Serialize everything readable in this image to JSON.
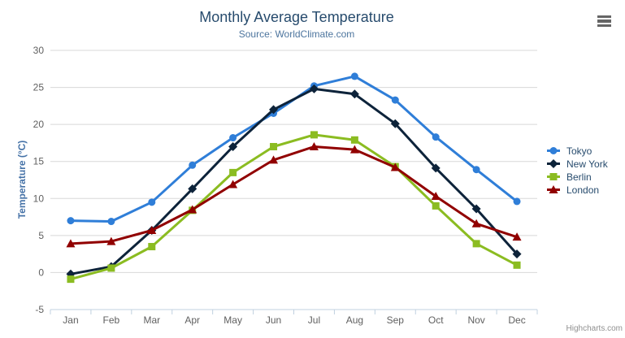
{
  "credits": {
    "label": "Highcharts.com"
  },
  "icons": {
    "export_menu": "hamburger-menu-icon"
  },
  "colors": {
    "background": "#ffffff",
    "title": "#274b6d",
    "subtitle": "#4d759e",
    "yaxis_title": "#4572a7",
    "axis_labels": "#606060",
    "gridline": "#d8d8d8",
    "axis_line": "#c0d0e0",
    "legend_text": "#274b6d",
    "credits_text": "#909090",
    "export_icon": "#666666"
  },
  "chart_data": {
    "type": "line",
    "title": "Monthly Average Temperature",
    "subtitle": "Source: WorldClimate.com",
    "xlabel": "",
    "ylabel": "Temperature (°C)",
    "ylim": [
      -5,
      30
    ],
    "ytick_step": 5,
    "yticks": [
      30,
      25,
      20,
      15,
      10,
      5,
      0,
      -5
    ],
    "grid": true,
    "legend_position": "right",
    "categories": [
      "Jan",
      "Feb",
      "Mar",
      "Apr",
      "May",
      "Jun",
      "Jul",
      "Aug",
      "Sep",
      "Oct",
      "Nov",
      "Dec"
    ],
    "series": [
      {
        "name": "Tokyo",
        "color": "#2f7ed8",
        "marker": "circle",
        "values": [
          7.0,
          6.9,
          9.5,
          14.5,
          18.2,
          21.5,
          25.2,
          26.5,
          23.3,
          18.3,
          13.9,
          9.6
        ]
      },
      {
        "name": "New York",
        "color": "#0d233a",
        "marker": "diamond",
        "values": [
          -0.2,
          0.8,
          5.7,
          11.3,
          17.0,
          22.0,
          24.8,
          24.1,
          20.1,
          14.1,
          8.6,
          2.5
        ]
      },
      {
        "name": "Berlin",
        "color": "#8bbc21",
        "marker": "square",
        "values": [
          -0.9,
          0.6,
          3.5,
          8.4,
          13.5,
          17.0,
          18.6,
          17.9,
          14.3,
          9.0,
          3.9,
          1.0
        ]
      },
      {
        "name": "London",
        "color": "#910000",
        "marker": "triangle",
        "values": [
          3.9,
          4.2,
          5.7,
          8.5,
          11.9,
          15.2,
          17.0,
          16.6,
          14.2,
          10.3,
          6.6,
          4.8
        ]
      }
    ]
  }
}
